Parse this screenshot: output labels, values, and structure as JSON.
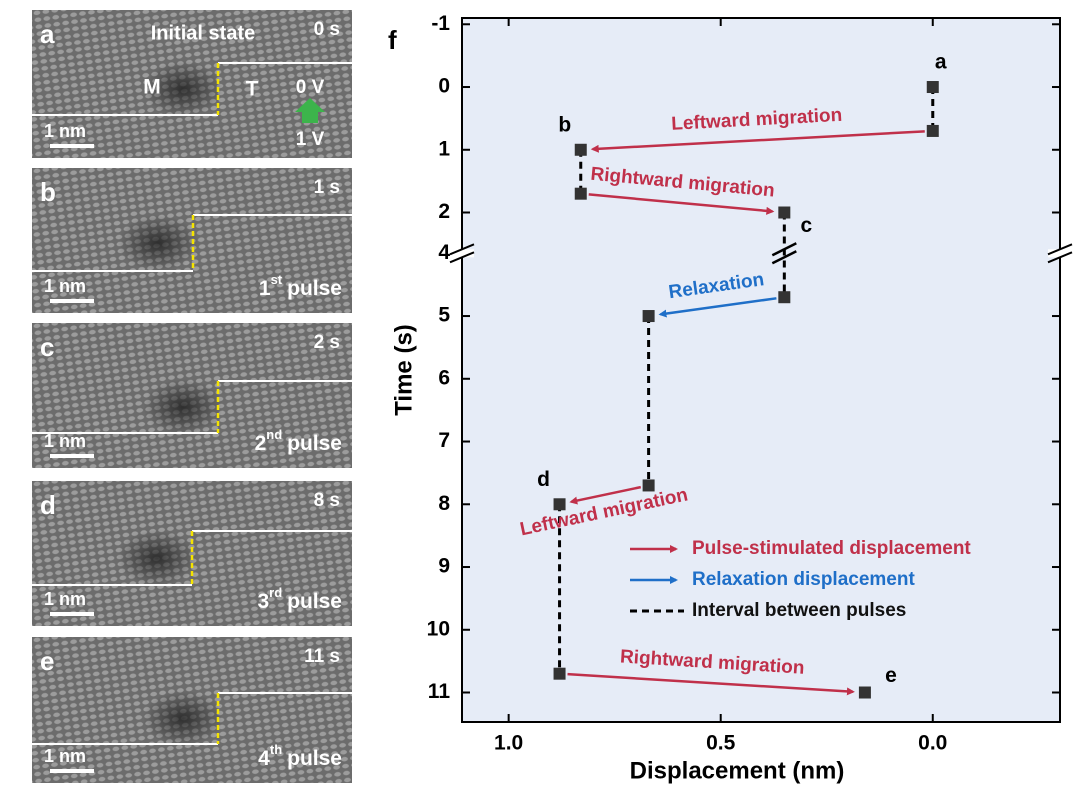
{
  "panels": [
    {
      "label": "a",
      "time": "0 s",
      "title": "Initial state",
      "left_phase": "M",
      "right_phase": "T",
      "top_voltage": "0 V",
      "bottom_voltage": "1 V",
      "scale_bar": "1 nm"
    },
    {
      "label": "b",
      "time": "1 s",
      "scale_bar": "1 nm",
      "pulse": {
        "num": "1",
        "sup": "st",
        "text": "pulse"
      }
    },
    {
      "label": "c",
      "time": "2 s",
      "scale_bar": "1 nm",
      "pulse": {
        "num": "2",
        "sup": "nd",
        "text": "pulse"
      }
    },
    {
      "label": "d",
      "time": "8 s",
      "scale_bar": "1 nm",
      "pulse": {
        "num": "3",
        "sup": "rd",
        "text": "pulse"
      }
    },
    {
      "label": "e",
      "time": "11 s",
      "scale_bar": "1 nm",
      "pulse": {
        "num": "4",
        "sup": "th",
        "text": "pulse"
      }
    }
  ],
  "chart_data": {
    "type": "scatter",
    "panel_label": "f",
    "xlabel": "Displacement (nm)",
    "ylabel": "Time (s)",
    "xlim": [
      1.11,
      -0.3
    ],
    "xticks": [
      {
        "value": 1,
        "label": "1.0"
      },
      0.5,
      {
        "value": 0,
        "label": "0.0"
      }
    ],
    "ylim": [
      -1.1,
      11.47
    ],
    "axis_break": [
      2.65,
      4
    ],
    "inverted_y": true,
    "yticks": [
      -1,
      0,
      1,
      2,
      4,
      5,
      6,
      7,
      8,
      9,
      10,
      11
    ],
    "background": "#e6ecf7",
    "series": [
      {
        "color": "#333333",
        "x": [
          0,
          0,
          0.83,
          0.83,
          0.35,
          0.35,
          0.67,
          0.67,
          0.88,
          0.88,
          0.16
        ],
        "values": [
          0,
          0.7,
          1.0,
          1.7,
          2.0,
          4.7,
          5.0,
          7.7,
          8.0,
          10.7,
          11.0
        ],
        "point_labels": [
          "a",
          null,
          "b",
          null,
          "c",
          null,
          null,
          null,
          "d",
          null,
          "e"
        ]
      }
    ],
    "annotations": [
      {
        "text": "Leftward migration",
        "color": "#c0304a"
      },
      {
        "text": "Rightward migration",
        "color": "#c0304a"
      },
      {
        "text": "Relaxation",
        "color": "#1f6fc8"
      },
      {
        "text": "Leftward migration",
        "color": "#c0304a"
      },
      {
        "text": "Rightward migration",
        "color": "#c0304a"
      }
    ],
    "legend": [
      {
        "name": "Pulse-stimulated displacement",
        "color": "#c0304a",
        "style": "arrow"
      },
      {
        "name": "Relaxation displacement",
        "color": "#1f6fc8",
        "style": "arrow"
      },
      {
        "name": "Interval between pulses",
        "color": "#000000",
        "style": "dashed"
      }
    ],
    "legend_position": "lower right"
  }
}
